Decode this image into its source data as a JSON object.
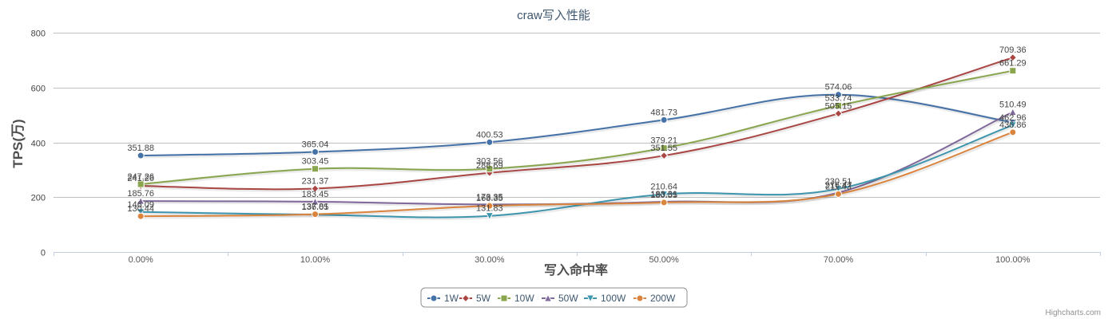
{
  "chart_data": {
    "type": "line",
    "title": "craw写入性能",
    "xlabel": "写入命中率",
    "ylabel": "TPS(万)",
    "categories": [
      "0.00%",
      "10.00%",
      "30.00%",
      "50.00%",
      "70.00%",
      "100.00%"
    ],
    "y_ticks": [
      "0",
      "200",
      "400",
      "600",
      "800"
    ],
    "ylim": [
      0,
      800
    ],
    "grid": true,
    "legend_position": "bottom-center",
    "series": [
      {
        "name": "1W",
        "color": "#4572a7",
        "marker": "circle",
        "values": [
          351.88,
          365.04,
          400.53,
          481.73,
          574.06,
          473.0
        ]
      },
      {
        "name": "5W",
        "color": "#aa4643",
        "marker": "diamond",
        "values": [
          241.26,
          231.37,
          288.69,
          351.55,
          505.15,
          709.36
        ]
      },
      {
        "name": "10W",
        "color": "#89a54e",
        "marker": "square",
        "values": [
          247.26,
          303.45,
          303.56,
          379.21,
          533.74,
          661.29
        ]
      },
      {
        "name": "50W",
        "color": "#80699b",
        "marker": "triangle",
        "values": [
          185.76,
          183.45,
          173.35,
          183.31,
          216.47,
          510.49
        ]
      },
      {
        "name": "100W",
        "color": "#3d96ae",
        "marker": "triangle-down",
        "values": [
          146.09,
          136.05,
          131.83,
          210.64,
          230.51,
          462.96
        ]
      },
      {
        "name": "200W",
        "color": "#db843d",
        "marker": "circle",
        "values": [
          130.44,
          137.81,
          168.35,
          180.55,
          211.43,
          436.86
        ]
      }
    ],
    "data_labels": [
      [
        "351.88",
        "365.04",
        "400.53",
        "481.73",
        "574.06",
        ""
      ],
      [
        "241.26",
        "231.37",
        "288.69",
        "351.55",
        "505.15",
        "709.36"
      ],
      [
        "247.26",
        "303.45",
        "303.56",
        "379.21",
        "533.74",
        "661.29"
      ],
      [
        "185.76",
        "183.45",
        "173.35",
        "183.31",
        "216.47",
        "510.49"
      ],
      [
        "146.09",
        "136.05",
        "131.83",
        "210.64",
        "230.51",
        "462.96"
      ],
      [
        "130.44",
        "137.81",
        "168.35",
        "180.55",
        "211.43",
        "436.86"
      ]
    ],
    "credits": "Highcharts.com"
  }
}
